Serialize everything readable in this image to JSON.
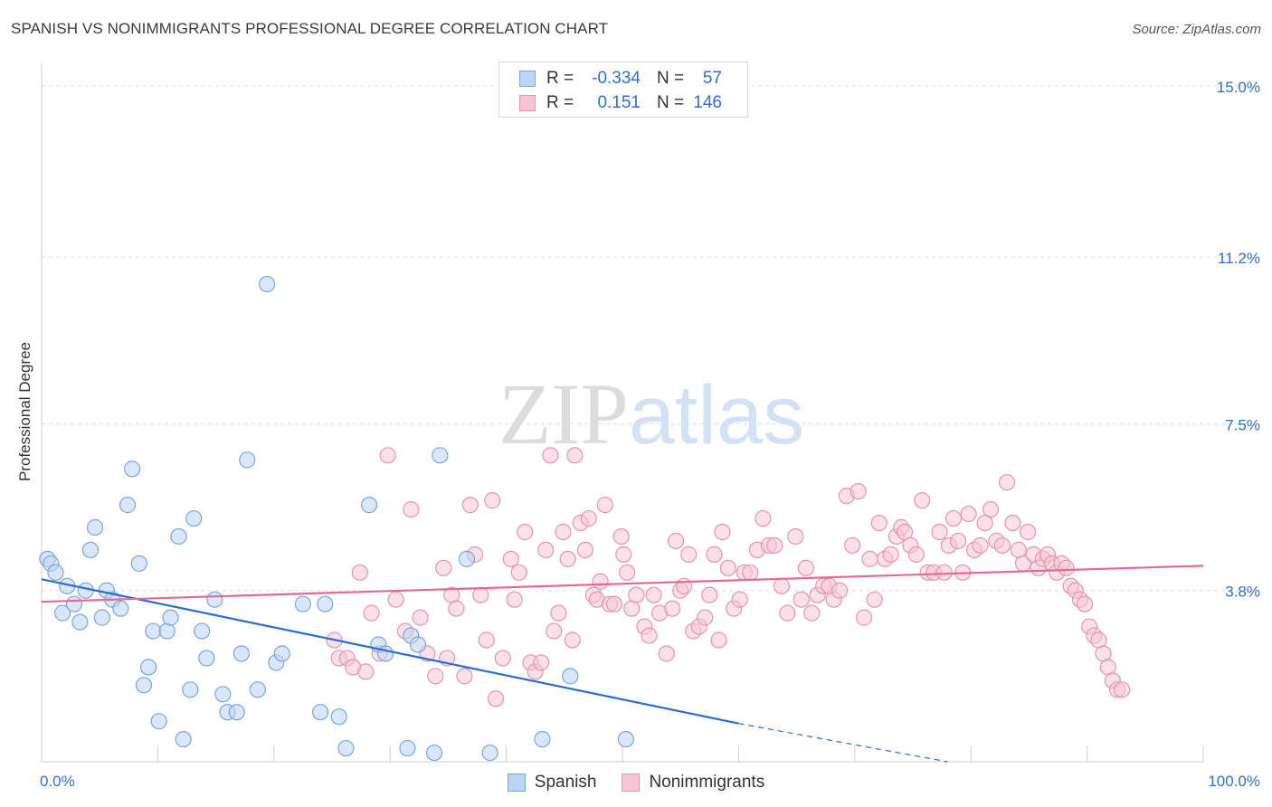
{
  "title": "SPANISH VS NONIMMIGRANTS PROFESSIONAL DEGREE CORRELATION CHART",
  "source": "Source: ZipAtlas.com",
  "watermark": "ZIPatlas",
  "legend": {
    "rows": [
      {
        "r_label": "R =",
        "r_value": "-0.334",
        "n_label": "N =",
        "n_value": "57"
      },
      {
        "r_label": "R =",
        "r_value": "0.151",
        "n_label": "N =",
        "n_value": "146"
      }
    ]
  },
  "colors": {
    "spanish_fill": "#bcd4f5",
    "spanish_stroke": "#7aa6e0",
    "spanish_line": "#2a6dd0",
    "nonimm_fill": "#f7c6d4",
    "nonimm_stroke": "#e894ae",
    "nonimm_line": "#e06b95",
    "tick_label": "#2f6fd0",
    "grid": "#dddddd"
  },
  "chart_data": {
    "type": "scatter",
    "title": "SPANISH VS NONIMMIGRANTS PROFESSIONAL DEGREE CORRELATION CHART",
    "xlabel": "",
    "ylabel": "Professional Degree",
    "xlim": [
      0,
      100
    ],
    "ylim": [
      0,
      15.5
    ],
    "x_tick_labels": [
      "0.0%",
      "100.0%"
    ],
    "y_ticks": [
      3.8,
      7.5,
      11.2,
      15.0
    ],
    "y_tick_labels": [
      "3.8%",
      "7.5%",
      "11.2%",
      "15.0%"
    ],
    "grid": true,
    "legend_position": "bottom",
    "series": [
      {
        "name": "Spanish",
        "r": -0.334,
        "n": 57,
        "trend": {
          "x": [
            0,
            60
          ],
          "y": [
            4.05,
            0.85
          ],
          "dashed_to": [
            78,
            0
          ]
        },
        "points": [
          [
            0.5,
            4.5
          ],
          [
            0.8,
            4.4
          ],
          [
            1.2,
            4.2
          ],
          [
            1.8,
            3.3
          ],
          [
            2.2,
            3.9
          ],
          [
            2.8,
            3.5
          ],
          [
            3.3,
            3.1
          ],
          [
            3.8,
            3.8
          ],
          [
            4.2,
            4.7
          ],
          [
            4.6,
            5.2
          ],
          [
            5.2,
            3.2
          ],
          [
            5.6,
            3.8
          ],
          [
            6.1,
            3.6
          ],
          [
            6.8,
            3.4
          ],
          [
            7.4,
            5.7
          ],
          [
            7.8,
            6.5
          ],
          [
            8.4,
            4.4
          ],
          [
            8.8,
            1.7
          ],
          [
            9.2,
            2.1
          ],
          [
            9.6,
            2.9
          ],
          [
            10.1,
            0.9
          ],
          [
            10.8,
            2.9
          ],
          [
            11.1,
            3.2
          ],
          [
            11.8,
            5.0
          ],
          [
            12.2,
            0.5
          ],
          [
            12.8,
            1.6
          ],
          [
            13.1,
            5.4
          ],
          [
            13.8,
            2.9
          ],
          [
            14.2,
            2.3
          ],
          [
            14.9,
            3.6
          ],
          [
            15.6,
            1.5
          ],
          [
            16.0,
            1.1
          ],
          [
            16.8,
            1.1
          ],
          [
            17.2,
            2.4
          ],
          [
            17.7,
            6.7
          ],
          [
            18.6,
            1.6
          ],
          [
            19.4,
            10.6
          ],
          [
            20.2,
            2.2
          ],
          [
            20.7,
            2.4
          ],
          [
            22.5,
            3.5
          ],
          [
            24.0,
            1.1
          ],
          [
            24.4,
            3.5
          ],
          [
            25.6,
            1.0
          ],
          [
            26.2,
            0.3
          ],
          [
            28.2,
            5.7
          ],
          [
            29.0,
            2.6
          ],
          [
            29.6,
            2.4
          ],
          [
            31.5,
            0.3
          ],
          [
            31.8,
            2.8
          ],
          [
            32.4,
            2.6
          ],
          [
            33.8,
            0.2
          ],
          [
            34.3,
            6.8
          ],
          [
            36.6,
            4.5
          ],
          [
            38.6,
            0.2
          ],
          [
            43.1,
            0.5
          ],
          [
            45.5,
            1.9
          ],
          [
            50.3,
            0.5
          ]
        ]
      },
      {
        "name": "Nonimmigrants",
        "r": 0.151,
        "n": 146,
        "trend": {
          "x": [
            0,
            100
          ],
          "y": [
            3.55,
            4.35
          ]
        },
        "points": [
          [
            25.2,
            2.7
          ],
          [
            25.6,
            2.3
          ],
          [
            26.3,
            2.3
          ],
          [
            26.8,
            2.1
          ],
          [
            27.4,
            4.2
          ],
          [
            27.9,
            2.0
          ],
          [
            28.4,
            3.3
          ],
          [
            29.1,
            2.4
          ],
          [
            29.8,
            6.8
          ],
          [
            30.5,
            3.6
          ],
          [
            31.3,
            2.9
          ],
          [
            31.8,
            5.6
          ],
          [
            32.6,
            3.2
          ],
          [
            33.2,
            2.4
          ],
          [
            33.9,
            1.9
          ],
          [
            34.6,
            4.3
          ],
          [
            34.9,
            2.3
          ],
          [
            35.3,
            3.7
          ],
          [
            35.7,
            3.4
          ],
          [
            36.4,
            1.9
          ],
          [
            36.9,
            5.7
          ],
          [
            37.3,
            4.6
          ],
          [
            37.8,
            3.7
          ],
          [
            38.3,
            2.7
          ],
          [
            38.8,
            5.8
          ],
          [
            39.1,
            1.4
          ],
          [
            39.7,
            2.3
          ],
          [
            40.4,
            4.5
          ],
          [
            40.7,
            3.6
          ],
          [
            41.1,
            4.2
          ],
          [
            41.6,
            5.1
          ],
          [
            42.1,
            2.2
          ],
          [
            42.5,
            2.0
          ],
          [
            43.0,
            2.2
          ],
          [
            43.4,
            4.7
          ],
          [
            43.8,
            6.8
          ],
          [
            44.1,
            2.9
          ],
          [
            44.5,
            3.3
          ],
          [
            44.9,
            5.1
          ],
          [
            45.3,
            4.5
          ],
          [
            45.7,
            2.7
          ],
          [
            45.9,
            6.8
          ],
          [
            46.4,
            5.3
          ],
          [
            46.8,
            4.7
          ],
          [
            47.1,
            5.4
          ],
          [
            47.5,
            3.7
          ],
          [
            47.8,
            3.6
          ],
          [
            48.1,
            4.0
          ],
          [
            48.5,
            5.7
          ],
          [
            48.9,
            3.5
          ],
          [
            49.3,
            3.5
          ],
          [
            49.9,
            5.0
          ],
          [
            50.1,
            4.6
          ],
          [
            50.4,
            4.2
          ],
          [
            50.8,
            3.4
          ],
          [
            51.2,
            3.7
          ],
          [
            51.9,
            3.0
          ],
          [
            52.3,
            2.8
          ],
          [
            52.7,
            3.7
          ],
          [
            53.2,
            3.3
          ],
          [
            53.8,
            2.4
          ],
          [
            54.3,
            3.4
          ],
          [
            54.6,
            4.9
          ],
          [
            55.0,
            3.8
          ],
          [
            55.3,
            3.9
          ],
          [
            55.7,
            4.6
          ],
          [
            56.1,
            2.9
          ],
          [
            56.6,
            3.0
          ],
          [
            57.1,
            3.2
          ],
          [
            57.5,
            3.7
          ],
          [
            57.9,
            4.6
          ],
          [
            58.3,
            2.7
          ],
          [
            58.6,
            5.1
          ],
          [
            59.1,
            4.3
          ],
          [
            59.6,
            3.4
          ],
          [
            60.1,
            3.6
          ],
          [
            60.5,
            4.2
          ],
          [
            61.0,
            4.2
          ],
          [
            61.6,
            4.7
          ],
          [
            62.1,
            5.4
          ],
          [
            62.6,
            4.8
          ],
          [
            63.1,
            4.8
          ],
          [
            63.7,
            3.9
          ],
          [
            64.2,
            3.3
          ],
          [
            64.9,
            5.0
          ],
          [
            65.4,
            3.6
          ],
          [
            65.8,
            4.3
          ],
          [
            66.3,
            3.3
          ],
          [
            66.8,
            3.7
          ],
          [
            67.3,
            3.9
          ],
          [
            67.8,
            3.9
          ],
          [
            68.2,
            3.6
          ],
          [
            68.7,
            3.8
          ],
          [
            69.3,
            5.9
          ],
          [
            69.8,
            4.8
          ],
          [
            70.3,
            6.0
          ],
          [
            70.8,
            3.2
          ],
          [
            71.3,
            4.5
          ],
          [
            71.7,
            3.6
          ],
          [
            72.1,
            5.3
          ],
          [
            72.6,
            4.5
          ],
          [
            73.1,
            4.6
          ],
          [
            73.6,
            5.0
          ],
          [
            74.0,
            5.2
          ],
          [
            74.3,
            5.1
          ],
          [
            74.8,
            4.8
          ],
          [
            75.3,
            4.6
          ],
          [
            75.8,
            5.8
          ],
          [
            76.3,
            4.2
          ],
          [
            76.8,
            4.2
          ],
          [
            77.3,
            5.1
          ],
          [
            77.7,
            4.2
          ],
          [
            78.1,
            4.8
          ],
          [
            78.5,
            5.4
          ],
          [
            78.9,
            4.9
          ],
          [
            79.3,
            4.2
          ],
          [
            79.8,
            5.5
          ],
          [
            80.3,
            4.7
          ],
          [
            80.8,
            4.8
          ],
          [
            81.2,
            5.3
          ],
          [
            81.7,
            5.6
          ],
          [
            82.2,
            4.9
          ],
          [
            82.7,
            4.8
          ],
          [
            83.1,
            6.2
          ],
          [
            83.6,
            5.3
          ],
          [
            84.1,
            4.7
          ],
          [
            84.5,
            4.4
          ],
          [
            84.9,
            5.1
          ],
          [
            85.4,
            4.6
          ],
          [
            85.8,
            4.3
          ],
          [
            86.2,
            4.5
          ],
          [
            86.6,
            4.6
          ],
          [
            87.0,
            4.4
          ],
          [
            87.4,
            4.2
          ],
          [
            87.8,
            4.4
          ],
          [
            88.2,
            4.3
          ],
          [
            88.6,
            3.9
          ],
          [
            89.0,
            3.8
          ],
          [
            89.4,
            3.6
          ],
          [
            89.8,
            3.5
          ],
          [
            90.2,
            3.0
          ],
          [
            90.6,
            2.8
          ],
          [
            91.0,
            2.7
          ],
          [
            91.4,
            2.4
          ],
          [
            91.8,
            2.1
          ],
          [
            92.2,
            1.8
          ],
          [
            92.6,
            1.6
          ],
          [
            93.0,
            1.6
          ]
        ]
      }
    ]
  }
}
